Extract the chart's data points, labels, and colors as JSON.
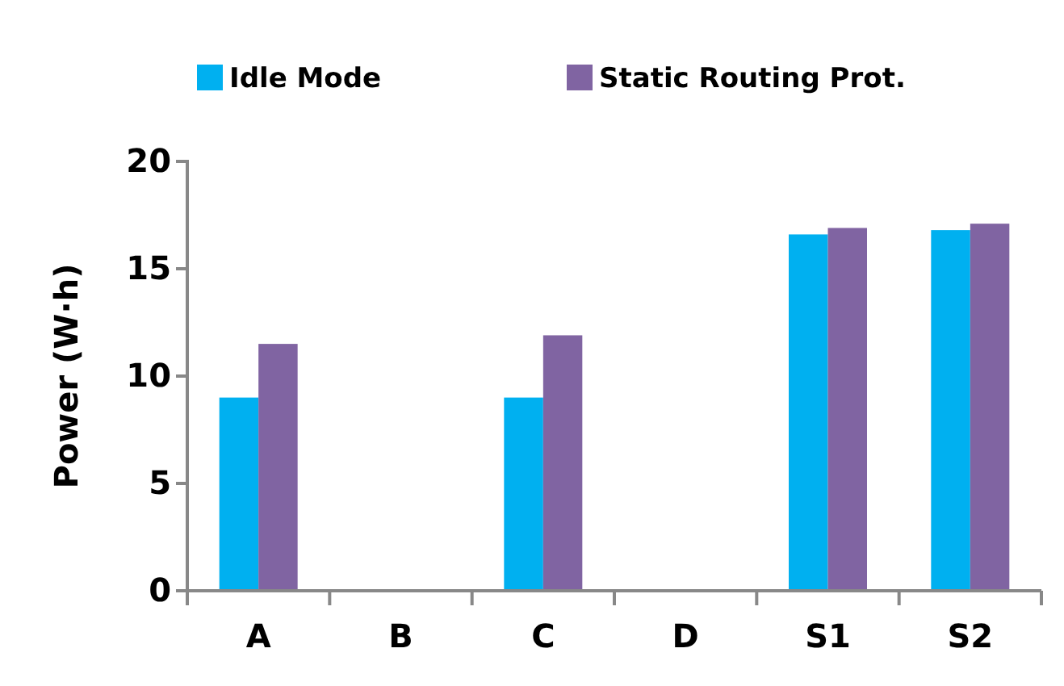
{
  "chart_data": {
    "type": "bar",
    "ylabel": "Power (W·h)",
    "categories": [
      "A",
      "B",
      "C",
      "D",
      "S1",
      "S2"
    ],
    "series": [
      {
        "name": "Idle Mode",
        "color": "#00b0f0",
        "values": [
          9.0,
          null,
          9.0,
          null,
          16.6,
          16.8
        ]
      },
      {
        "name": "Static Routing Prot.",
        "color": "#8064a2",
        "values": [
          11.5,
          null,
          11.9,
          null,
          16.9,
          17.1
        ]
      }
    ],
    "ylim": [
      0,
      20
    ],
    "yticks": [
      0,
      5,
      10,
      15,
      20
    ],
    "grid": false,
    "legend": "top"
  }
}
